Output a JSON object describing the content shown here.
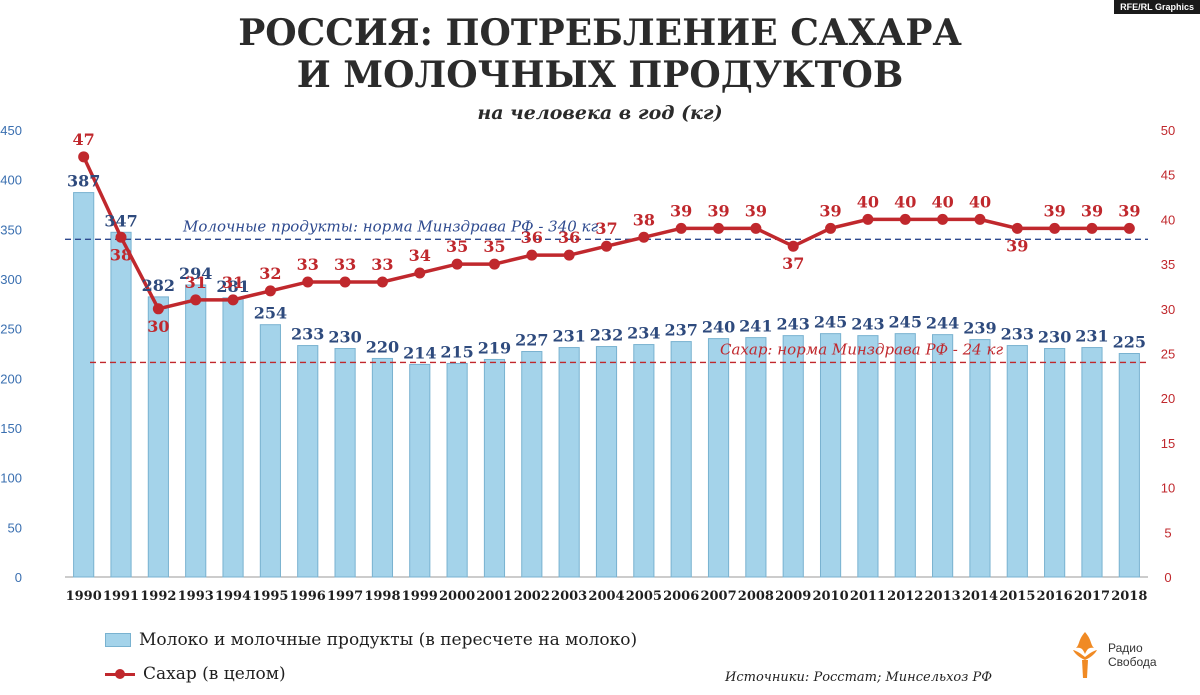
{
  "badge": "RFE/RL Graphics",
  "title_line1": "РОССИЯ: ПОТРЕБЛЕНИЕ САХАРА",
  "title_line2": "И МОЛОЧНЫХ ПРОДУКТОВ",
  "subtitle": "на человека в год (кг)",
  "legend": {
    "dairy": "Молоко и молочные продукты (в пересчете на молоко)",
    "sugar": "Сахар (в целом)"
  },
  "source": "Источники: Росстат; Минсельхоз РФ",
  "logo": {
    "line1": "Радио",
    "line2": "Свобода"
  },
  "colors": {
    "bar": "#a4d3ea",
    "bar_border": "#79b2d0",
    "dairy_text": "#2e4a7d",
    "sugar": "#c0282d",
    "left_axis": "#3a6fb0"
  },
  "chart_data": {
    "type": "bar+line",
    "categories": [
      "1990",
      "1991",
      "1992",
      "1993",
      "1994",
      "1995",
      "1996",
      "1997",
      "1998",
      "1999",
      "2000",
      "2001",
      "2002",
      "2003",
      "2004",
      "2005",
      "2006",
      "2007",
      "2008",
      "2009",
      "2010",
      "2011",
      "2012",
      "2013",
      "2014",
      "2015",
      "2016",
      "2017",
      "2018"
    ],
    "series": [
      {
        "name": "Молоко и молочные продукты (в пересчете на молоко)",
        "axis": "left",
        "type": "bar",
        "values": [
          387,
          347,
          282,
          294,
          281,
          254,
          233,
          230,
          220,
          214,
          215,
          219,
          227,
          231,
          232,
          234,
          237,
          240,
          241,
          243,
          245,
          243,
          245,
          244,
          239,
          233,
          230,
          231,
          225
        ]
      },
      {
        "name": "Сахар (в целом)",
        "axis": "right",
        "type": "line",
        "values": [
          47,
          38,
          30,
          31,
          31,
          32,
          33,
          33,
          33,
          34,
          35,
          35,
          36,
          36,
          37,
          38,
          39,
          39,
          39,
          37,
          39,
          40,
          40,
          40,
          40,
          39,
          39,
          39,
          39
        ]
      }
    ],
    "y_left": {
      "min": 0,
      "max": 450,
      "ticks": [
        0,
        50,
        100,
        150,
        200,
        250,
        300,
        350,
        400,
        450
      ]
    },
    "y_right": {
      "min": 0,
      "max": 50,
      "ticks": [
        0,
        5,
        10,
        15,
        20,
        25,
        30,
        35,
        40,
        45,
        50
      ]
    },
    "reference_lines": [
      {
        "label": "Молочные продукты: норма Минздрава РФ - 340 кг",
        "axis": "left",
        "value": 340
      },
      {
        "label": "Сахар: норма Минздрава РФ - 24 кг",
        "axis": "right",
        "value": 24
      }
    ],
    "grid": false
  }
}
